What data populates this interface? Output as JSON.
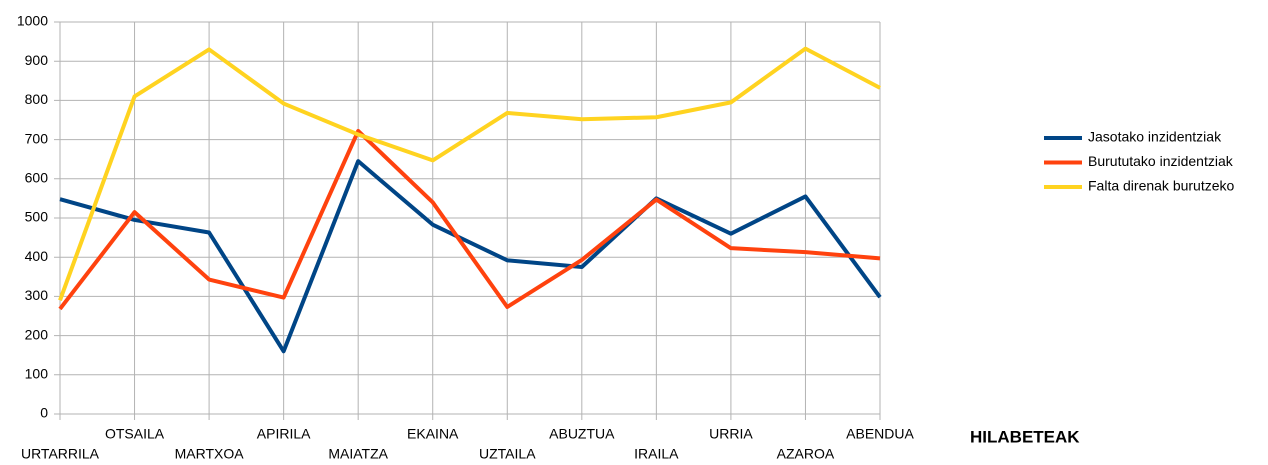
{
  "chart_data": {
    "type": "line",
    "x_label": "HILABETEAK",
    "categories": [
      "URTARRILA",
      "OTSAILA",
      "MARTXOA",
      "APIRILA",
      "MAIATZA",
      "EKAINA",
      "UZTAILA",
      "ABUZTUA",
      "IRAILA",
      "URRIA",
      "AZAROA",
      "ABENDUA"
    ],
    "series": [
      {
        "name": "Jasotako inzidentziak",
        "color": "#004586",
        "values": [
          548,
          495,
          463,
          160,
          645,
          483,
          392,
          375,
          550,
          460,
          555,
          298
        ]
      },
      {
        "name": "Burututako inzidentziak",
        "color": "#ff420e",
        "values": [
          268,
          515,
          343,
          297,
          722,
          540,
          273,
          393,
          547,
          423,
          413,
          397
        ]
      },
      {
        "name": "Falta direnak burutzeko",
        "color": "#ffd320",
        "values": [
          290,
          810,
          930,
          792,
          713,
          647,
          768,
          752,
          757,
          795,
          932,
          832
        ]
      }
    ],
    "ylim": [
      0,
      1000
    ],
    "yticks": [
      0,
      100,
      200,
      300,
      400,
      500,
      600,
      700,
      800,
      900,
      1000
    ],
    "grid": true,
    "legend": "right"
  }
}
